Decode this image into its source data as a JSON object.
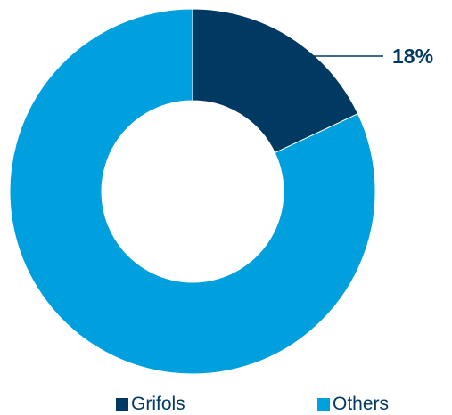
{
  "chart_data": {
    "type": "pie",
    "variant": "donut",
    "categories": [
      "Grifols",
      "Others"
    ],
    "values": [
      18,
      82
    ],
    "colors": [
      "#003a63",
      "#009fde"
    ],
    "data_labels": [
      {
        "category": "Grifols",
        "text": "18%",
        "color": "#003a63"
      }
    ],
    "legend": {
      "position": "bottom",
      "entries": [
        {
          "label": "Grifols",
          "color": "#003a63"
        },
        {
          "label": "Others",
          "color": "#009fde"
        }
      ]
    }
  }
}
